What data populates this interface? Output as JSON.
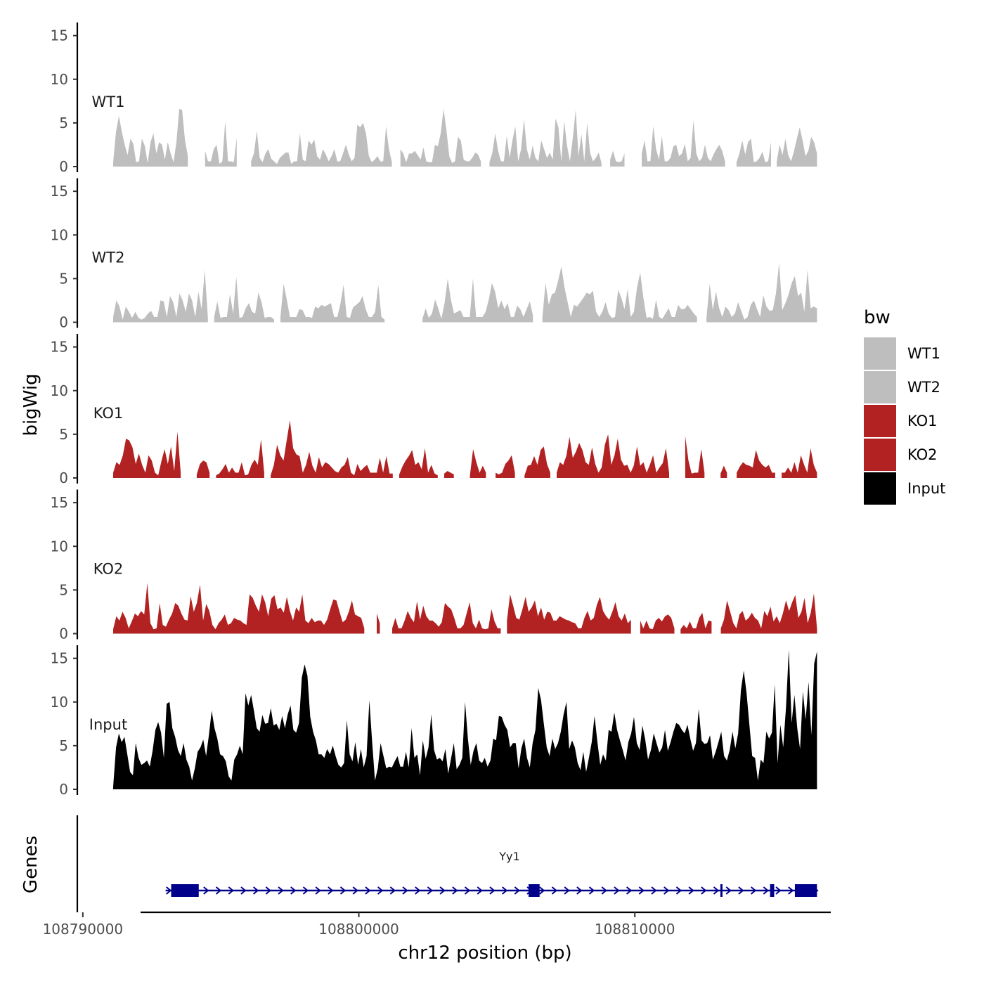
{
  "chart_data": {
    "type": "area",
    "chromosome": "chr12",
    "xlabel": "chr12 position (bp)",
    "ylabel": "bigWig",
    "genes_label": "Genes",
    "xlim": [
      108789800,
      108817100
    ],
    "x_ticks": [
      {
        "value": 108790000,
        "label": "108790000"
      },
      {
        "value": 108800000,
        "label": "108800000"
      },
      {
        "value": 108810000,
        "label": "108810000"
      }
    ],
    "ylim": [
      0,
      16.5
    ],
    "y_ticks": [
      {
        "value": 0,
        "label": "0"
      },
      {
        "value": 5,
        "label": "5"
      },
      {
        "value": 10,
        "label": "10"
      },
      {
        "value": 15,
        "label": "15"
      }
    ],
    "data_range": [
      108791100,
      108816600
    ],
    "legend": {
      "title": "bw",
      "entries": [
        {
          "label": "WT1",
          "color": "#bebebe"
        },
        {
          "label": "WT2",
          "color": "#bebebe"
        },
        {
          "label": "KO1",
          "color": "#b22222"
        },
        {
          "label": "KO2",
          "color": "#b22222"
        },
        {
          "label": "Input",
          "color": "#000000"
        }
      ]
    },
    "series": [
      {
        "name": "WT1",
        "label": "WT1",
        "color": "#bebebe",
        "values": [
          0.5,
          4,
          5.8,
          4,
          2.5,
          1.3,
          3.2,
          2.6,
          0.5,
          0.6,
          3.2,
          2.4,
          0.4,
          2.8,
          3.8,
          1.5,
          2.8,
          2.5,
          0.8,
          2.8,
          1.5,
          0.5,
          2.8,
          6.6,
          6.5,
          3,
          1.2,
          0,
          0,
          0,
          0,
          0,
          1.8,
          0.6,
          0.6,
          2,
          2.5,
          0.3,
          0.6,
          5.2,
          0.6,
          0.6,
          0.5,
          3.3,
          0,
          0,
          0,
          0,
          0.6,
          1.5,
          4.1,
          1,
          0.5,
          1.5,
          2,
          0.9,
          0.6,
          0.3,
          1,
          1.3,
          1.6,
          1.6,
          0.3,
          0.6,
          0.6,
          3.8,
          0.8,
          0.6,
          3,
          2.5,
          3.1,
          1.2,
          0.8,
          2,
          1.4,
          0.6,
          1.2,
          2,
          0.6,
          0.6,
          1.5,
          2.5,
          1.4,
          0.6,
          1,
          4.8,
          4.5,
          5,
          3.8,
          1.2,
          0.5,
          0.8,
          1.2,
          0.6,
          0.6,
          4.6,
          2,
          0.5,
          0,
          0,
          2,
          1.5,
          0.5,
          1.5,
          1.5,
          1.8,
          1.3,
          0.8,
          2.2,
          0.6,
          0.5,
          0.5,
          2.5,
          2.3,
          3.8,
          6.6,
          4.2,
          1.2,
          0.4,
          0.6,
          3.4,
          3,
          0.8,
          0.6,
          0.6,
          1,
          1.6,
          1.4,
          0.6,
          0,
          0,
          0.5,
          1.6,
          3.8,
          1.8,
          0.6,
          0.6,
          3.5,
          1,
          3,
          4.6,
          0.6,
          2,
          5.4,
          2,
          0.8,
          2.4,
          1,
          0.6,
          3,
          2,
          1,
          1.6,
          0.8,
          5.5,
          4.5,
          0.6,
          5.2,
          2.4,
          0.6,
          3.3,
          6.5,
          1.2,
          3.7,
          0.6,
          5,
          1.6,
          0.6,
          1,
          1.6,
          0.4,
          0,
          0,
          0.8,
          1.8,
          0.6,
          0.5,
          0.6,
          1.5,
          0,
          0,
          3.8,
          0,
          0,
          1.5,
          3,
          0.6,
          0.6,
          4.6,
          2,
          0.8,
          3.5,
          0.6,
          0.6,
          1,
          2.3,
          2.5,
          1.2,
          1.5,
          2.6,
          0.6,
          1,
          5.3,
          1.5,
          0.6,
          1,
          2.5,
          1,
          0.6,
          1.4,
          2,
          2.5,
          1.8,
          0.6,
          0,
          0,
          0,
          0.5,
          1.5,
          3,
          1.4,
          2.8,
          3.2,
          0.5,
          0.6,
          1,
          1.7,
          0.5,
          0.6,
          2.8,
          0,
          0.6,
          2.5,
          1.3,
          3.2,
          1.3,
          0.6,
          1.8,
          3.2,
          4.5,
          3,
          1.2,
          1.8,
          3.4,
          2.8,
          1.5
        ]
      },
      {
        "name": "WT2",
        "label": "WT2",
        "color": "#bebebe",
        "values": [
          0.6,
          2.5,
          1.8,
          0.3,
          1.8,
          1.2,
          0.5,
          1.2,
          0.5,
          0.3,
          0.5,
          1,
          1.3,
          0.6,
          0.6,
          2.5,
          2.4,
          0.6,
          3,
          2.3,
          0.6,
          3.3,
          2.5,
          1.2,
          3.3,
          2.5,
          0.6,
          3.5,
          1.5,
          6,
          0.5,
          0,
          0.6,
          2.4,
          0.5,
          0.6,
          0.6,
          3.2,
          1,
          5.2,
          0.5,
          0.6,
          1.6,
          2.2,
          1.2,
          1,
          3.4,
          2.3,
          0.5,
          0.6,
          0.6,
          0.3,
          0,
          0.6,
          4.4,
          2.6,
          0.6,
          0.6,
          0.6,
          1.5,
          1.4,
          0.6,
          0.6,
          0.5,
          1.8,
          1.6,
          2,
          1.8,
          2,
          2.2,
          0.6,
          0.6,
          2.1,
          4.3,
          0.6,
          0.5,
          1.7,
          2,
          2.3,
          3,
          1.5,
          0.6,
          0.6,
          1.2,
          4.3,
          0.6,
          0.3,
          0,
          0,
          0,
          0,
          0,
          0,
          0.6,
          0,
          0,
          0,
          0,
          0.4,
          1.6,
          0.5,
          1,
          2.6,
          1.6,
          0.4,
          2.2,
          5,
          2.6,
          1,
          1.2,
          1.4,
          0.6,
          0.6,
          0.6,
          5,
          0.6,
          0.6,
          0.6,
          1.2,
          2.6,
          4.5,
          3.5,
          1.6,
          2.5,
          1.5,
          2.2,
          0.6,
          0.6,
          1.9,
          1.5,
          0.6,
          1.5,
          2.4,
          0.8,
          0,
          0,
          0.6,
          4.5,
          2,
          3.2,
          3.4,
          4.8,
          6.4,
          4,
          2.3,
          0.6,
          2,
          1.8,
          2.3,
          2.8,
          3.4,
          3.2,
          3.6,
          1.2,
          0.6,
          1.2,
          2.3,
          1,
          0.5,
          0.6,
          3.7,
          2.8,
          1.5,
          3.8,
          0.6,
          1.2,
          4,
          5.7,
          2.8,
          0.5,
          0.6,
          0.4,
          2.6,
          0.6,
          0.4,
          1,
          1.6,
          0.6,
          0.6,
          2,
          1.5,
          1.5,
          2,
          1.5,
          1,
          0.6,
          0,
          0,
          0.6,
          4.4,
          1.4,
          3.5,
          1.6,
          0.6,
          1.8,
          1.4,
          0.6,
          1,
          2.3,
          1.3,
          0.3,
          0.6,
          2,
          2.5,
          1.5,
          0.6,
          3.1,
          1.8,
          1.3,
          1.4,
          3.3,
          6.8,
          1.4,
          2.2,
          3.2,
          4.5,
          5.3,
          3,
          3.4,
          1.2,
          6,
          1.6,
          1.8,
          1.6
        ]
      },
      {
        "name": "KO1",
        "label": "KO1",
        "color": "#b22222",
        "values": [
          0.6,
          1.8,
          1.5,
          2.6,
          4.5,
          4.3,
          3.5,
          1.6,
          2.8,
          1.5,
          0.6,
          2.6,
          2,
          0.6,
          0.3,
          1.9,
          3.3,
          1.6,
          3.6,
          0.8,
          5.3,
          0.6,
          0,
          0,
          0,
          0,
          0.4,
          1.6,
          2,
          1.8,
          0.6,
          0,
          0.3,
          0.5,
          1,
          1.6,
          0.6,
          1.2,
          0.6,
          0.6,
          1.8,
          0.3,
          0.4,
          1.5,
          2.1,
          1.5,
          4.4,
          0.6,
          0,
          0.3,
          1.5,
          3.8,
          2.6,
          2,
          4.3,
          6.6,
          3.4,
          2.7,
          2.5,
          0.6,
          1.5,
          3,
          1.4,
          0.6,
          2.4,
          1.2,
          1.8,
          1.6,
          1.2,
          0.8,
          0.6,
          1.2,
          1.5,
          2.4,
          0.6,
          0.3,
          1.6,
          0.8,
          1.2,
          1.5,
          0.6,
          0.6,
          0.6,
          2.3,
          0.6,
          2.5,
          0.5,
          0.5,
          0,
          0.4,
          1.3,
          2,
          2.5,
          3.2,
          1.5,
          1.8,
          1,
          3.4,
          0.6,
          1.5,
          0.5,
          0.3,
          0,
          0.5,
          0.8,
          0.6,
          0.4,
          0,
          0,
          0,
          0,
          0.3,
          3.3,
          1.8,
          0.6,
          1.4,
          0.6,
          0,
          0,
          0.6,
          0.4,
          0.6,
          1.6,
          2,
          2.6,
          0.6,
          0,
          0,
          0.3,
          1.4,
          1.5,
          2.5,
          1.5,
          3.2,
          3.6,
          1.6,
          0.6,
          0,
          0.6,
          1.8,
          1.5,
          2.5,
          4.7,
          2.3,
          3,
          4,
          3.2,
          1.8,
          1.5,
          3.5,
          1.6,
          0.6,
          1.2,
          3.8,
          5,
          1.5,
          2.6,
          4.5,
          2.1,
          1.4,
          1.5,
          0.6,
          1.4,
          3.6,
          1.4,
          1.8,
          0.6,
          1.5,
          2.6,
          0.6,
          1.2,
          1.7,
          3.4,
          0.6,
          0,
          0,
          0,
          0,
          4.8,
          2,
          0.5,
          0.6,
          0.6,
          3.3,
          0.6,
          0,
          0,
          0,
          0,
          0.5,
          1.4,
          0.6,
          0,
          0,
          0.6,
          1.3,
          1.8,
          1.5,
          1.4,
          1.2,
          3.2,
          2,
          1.5,
          1.2,
          1.5,
          0.6,
          0.6,
          0,
          0.6,
          0.6,
          1.2,
          0.6,
          1.8,
          0.6,
          2.6,
          1.5,
          0.6,
          3.4,
          1.5,
          0.6
        ]
      },
      {
        "name": "KO2",
        "label": "KO2",
        "color": "#b22222",
        "values": [
          0.5,
          2,
          1.5,
          2.5,
          1.8,
          0.6,
          1.4,
          2.3,
          2,
          2.6,
          2.2,
          5.8,
          1.2,
          0.5,
          0.6,
          3.5,
          1,
          0.8,
          1.6,
          2.3,
          3.5,
          3.2,
          2.3,
          1.6,
          1.5,
          4.3,
          2.5,
          3.5,
          5.6,
          1.5,
          3.4,
          2.6,
          1,
          0.5,
          1.2,
          1.6,
          2.2,
          1,
          1.2,
          1.8,
          1.6,
          1.5,
          1.2,
          1,
          4.5,
          4.1,
          3.2,
          2.5,
          4.5,
          3.6,
          2,
          4,
          4.4,
          2.8,
          3,
          2.4,
          4.2,
          2.6,
          1.5,
          3,
          2.5,
          4.5,
          1.5,
          1.2,
          1.8,
          1.3,
          1.5,
          1.5,
          1,
          1.6,
          2.8,
          3.9,
          3.8,
          2.5,
          1.3,
          1.6,
          2.5,
          3.8,
          2.2,
          2,
          1.8,
          0.6,
          0,
          0,
          0,
          2.3,
          1.2,
          0,
          0,
          0,
          0.6,
          1.8,
          0.6,
          0.6,
          1.5,
          2.6,
          1.8,
          1.3,
          3.7,
          1.6,
          3.2,
          2,
          1.5,
          1.5,
          1.2,
          0.8,
          1.3,
          3.5,
          3.1,
          2.8,
          1.8,
          0.6,
          0.6,
          1,
          2.3,
          3.6,
          1.2,
          0.6,
          1.6,
          0.6,
          0.5,
          0.6,
          2.8,
          1.4,
          0.6,
          0.6,
          0,
          1.5,
          4.5,
          3.2,
          1.8,
          1.6,
          2.8,
          4.2,
          2.5,
          3,
          3.8,
          2,
          3,
          1.6,
          2.5,
          2.4,
          1.5,
          1.5,
          2,
          1.8,
          1.6,
          1.5,
          1.3,
          1.2,
          0.6,
          0.6,
          1.8,
          2.6,
          1.5,
          1.8,
          3.3,
          4.2,
          2.6,
          2,
          1.6,
          2.5,
          3.6,
          2,
          1.5,
          2.3,
          1.2,
          1.6,
          0,
          0,
          1.5,
          0.6,
          1.5,
          0.6,
          0.5,
          1.5,
          1.8,
          1.4,
          2,
          2.2,
          1.8,
          0.6,
          0,
          0.5,
          1,
          0.6,
          1.4,
          0.6,
          0.6,
          1.8,
          2.4,
          0.6,
          1.5,
          1.4,
          0,
          0,
          0.6,
          1.6,
          3.8,
          2.5,
          1.2,
          0.6,
          2.2,
          2.6,
          1.5,
          1.8,
          2.4,
          1.8,
          1.5,
          0.6,
          2.6,
          2,
          3.1,
          1.4,
          2,
          1.2,
          2.3,
          3.8,
          2.6,
          3.6,
          4.4,
          1.8,
          2.5,
          4.1,
          1.2,
          2.4,
          4.6,
          0.6
        ]
      },
      {
        "name": "Input",
        "label": "Input",
        "color": "#000000",
        "values": [
          0.3,
          4.8,
          6.4,
          5.4,
          6,
          4,
          2,
          1.6,
          5.3,
          3.6,
          2.8,
          3,
          3.3,
          2.6,
          4.4,
          6.8,
          7.7,
          6.5,
          3.6,
          9.8,
          10,
          7,
          6,
          4.5,
          3.8,
          5.3,
          3.4,
          2.6,
          1,
          2.4,
          4.3,
          4.8,
          5.7,
          3.8,
          6.2,
          9,
          7,
          5.8,
          4,
          3.8,
          3.2,
          1.5,
          1,
          3.4,
          4,
          5,
          4,
          11,
          9.6,
          10.8,
          9,
          7,
          6.6,
          8.5,
          7.5,
          7.6,
          9.3,
          7.3,
          7.5,
          6.8,
          8.4,
          7,
          8.6,
          9.6,
          6.8,
          6.5,
          7.6,
          12.8,
          14.3,
          13,
          8.3,
          6.6,
          5.6,
          4,
          4,
          3.6,
          4.6,
          4,
          5,
          3.8,
          2.8,
          2.5,
          3,
          7.9,
          4,
          3.2,
          5.4,
          2.8,
          4.6,
          2.5,
          3.8,
          10.2,
          5.4,
          1,
          2.4,
          5.3,
          3.8,
          2.4,
          2.6,
          2.5,
          3.2,
          3.8,
          2.6,
          2.6,
          4.3,
          2.5,
          7,
          3.6,
          4,
          1.6,
          5.6,
          3.5,
          4.8,
          8.6,
          4.5,
          3.4,
          3.6,
          3.2,
          4.6,
          1.8,
          3.5,
          5.3,
          2.3,
          2.8,
          3.6,
          10,
          5.8,
          2.8,
          4.4,
          5.3,
          3.3,
          3,
          3.6,
          2.6,
          3.3,
          5.8,
          5.6,
          8.4,
          8.3,
          7.4,
          6.8,
          4.8,
          5.3,
          5.3,
          2.4,
          4.7,
          5.8,
          3.6,
          2.5,
          5.3,
          6.8,
          11.6,
          10.2,
          7.4,
          4.8,
          3.8,
          5.8,
          4.6,
          5.3,
          6.6,
          8.6,
          10,
          4.6,
          5.6,
          4.8,
          3,
          2.2,
          4.3,
          2,
          3.6,
          5.4,
          8.4,
          5.4,
          2.8,
          4,
          3.3,
          6.8,
          6.6,
          8.8,
          6.8,
          5.6,
          4.5,
          3.3,
          5.4,
          6.4,
          8.3,
          5.3,
          4.5,
          7.3,
          5.7,
          3.4,
          4.5,
          6.4,
          5.3,
          4.2,
          4.8,
          6.8,
          4.4,
          5.4,
          6.6,
          7.6,
          7.4,
          6.8,
          6.4,
          7.4,
          5.8,
          4.4,
          5.3,
          9.2,
          5.6,
          5.2,
          5.3,
          6.2,
          3.4,
          4.3,
          5.4,
          6.6,
          3.8,
          3.3,
          4.5,
          6.6,
          4.7,
          6.4,
          11.4,
          13.6,
          11,
          7.4,
          3.8,
          3.6,
          1,
          3.4,
          3,
          6.6,
          5.8,
          6.5,
          12,
          3,
          7.4,
          4.8,
          9.4,
          16,
          7.6,
          10.8,
          7,
          4.6,
          11.2,
          8,
          12.3,
          6.2,
          14.4,
          15.8
        ]
      }
    ],
    "gene_track": {
      "gene_name": "Yy1",
      "strand": "+",
      "color": "#00008b",
      "start": 108793000,
      "end": 108816600,
      "exons": [
        [
          108793200,
          108794200
        ],
        [
          108806150,
          108806550
        ],
        [
          108813100,
          108813140
        ],
        [
          108814900,
          108815050
        ],
        [
          108815800,
          108816600
        ]
      ]
    }
  }
}
